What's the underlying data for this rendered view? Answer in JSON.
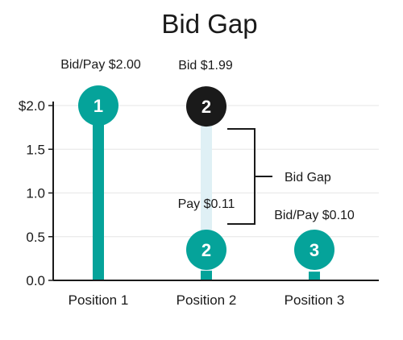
{
  "chart_data": {
    "type": "lollipop",
    "title": "Bid Gap",
    "xlabel": "",
    "ylabel": "",
    "ylim": [
      0,
      2.0
    ],
    "y_ticks": [
      "0.0",
      "0.5",
      "1.0",
      "1.5",
      "$2.0"
    ],
    "grid": true,
    "categories": [
      "Position 1",
      "Position 2",
      "Position 3"
    ],
    "series": [
      {
        "values": [
          2.0,
          0.11,
          0.1
        ]
      },
      {
        "values": [
          null,
          1.99,
          null
        ]
      }
    ],
    "markers": [
      {
        "category": "Position 1",
        "rank": "1",
        "value": 2.0,
        "label": "Bid/Pay $2.00",
        "style": "teal"
      },
      {
        "category": "Position 2",
        "rank": "2",
        "value": 1.99,
        "label": "Bid $1.99",
        "style": "dark"
      },
      {
        "category": "Position 2",
        "rank": "2",
        "value": 0.11,
        "label": "Pay $0.11",
        "style": "teal"
      },
      {
        "category": "Position 3",
        "rank": "3",
        "value": 0.1,
        "label": "Bid/Pay $0.10",
        "style": "teal"
      }
    ],
    "gap_annotation": {
      "category": "Position 2",
      "from": 0.11,
      "to": 1.99,
      "label": "Bid Gap"
    },
    "colors": {
      "teal": "#05a39a",
      "dark": "#1a1a1a",
      "gap": "#dff0f5",
      "grid": "#e6e6e6",
      "axis": "#1a1a1a"
    }
  }
}
